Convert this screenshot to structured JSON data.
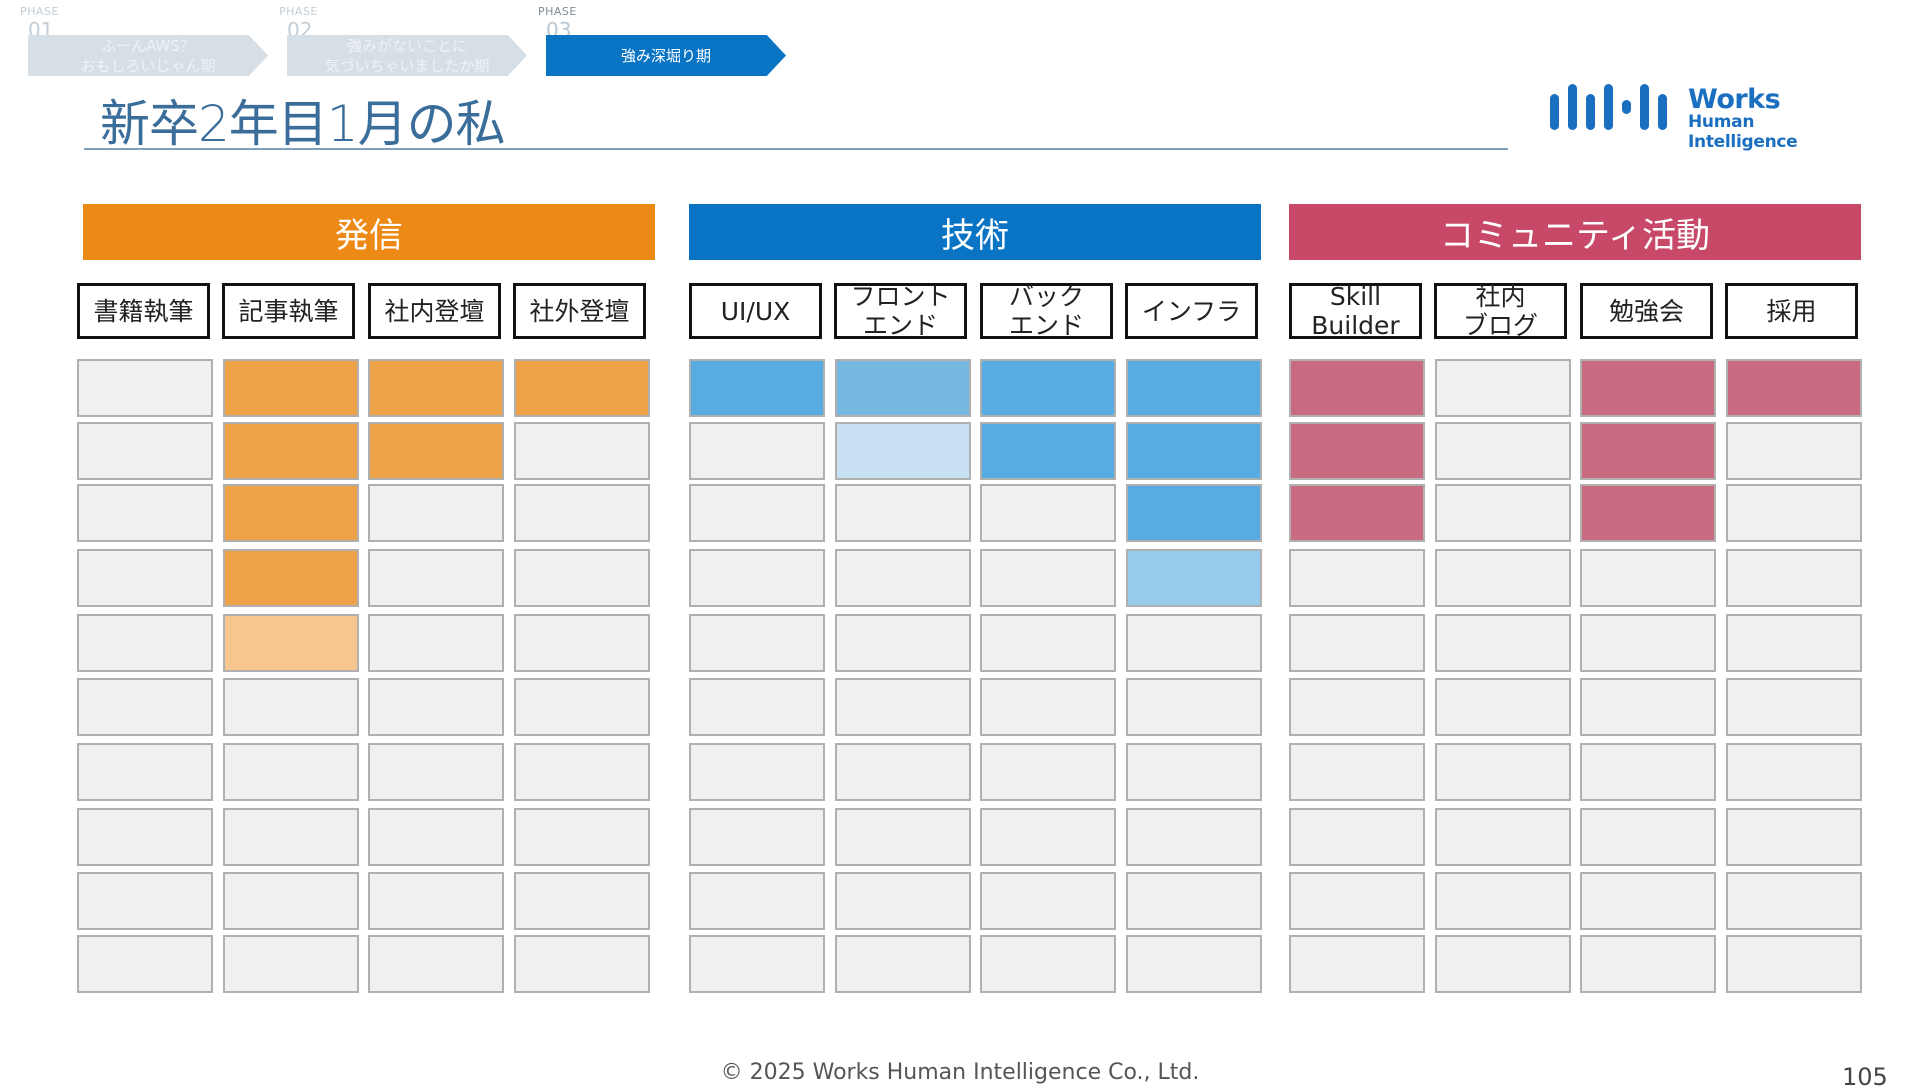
{
  "phases": [
    {
      "tag": "PHASE",
      "num": "01",
      "label": "ふーんAWS？\nおもしろいじゃん期",
      "state": "inactive"
    },
    {
      "tag": "PHASE",
      "num": "02",
      "label": "強みがないことに\n気づいちゃいましたか期",
      "state": "inactive"
    },
    {
      "tag": "PHASE",
      "num": "03",
      "label": "強み深堀り期",
      "state": "active"
    }
  ],
  "title": "新卒2年目1月の私",
  "logo": {
    "word": "Works",
    "sub": "Human Intelligence",
    "color": "#1a6fc0"
  },
  "categories": [
    {
      "label": "発信",
      "color": "#ed8a15",
      "columns": [
        {
          "label": "書籍執筆",
          "filled": 0,
          "fill_color": "#eea248",
          "partial": 0
        },
        {
          "label": "記事執筆",
          "filled": 4,
          "fill_color": "#eea248",
          "partial": 1,
          "partial_color": "#f7c690"
        },
        {
          "label": "社内登壇",
          "filled": 2,
          "fill_color": "#eea248",
          "partial": 0
        },
        {
          "label": "社外登壇",
          "filled": 1,
          "fill_color": "#eea248",
          "partial": 0
        }
      ]
    },
    {
      "label": "技術",
      "color": "#0a74c4",
      "columns": [
        {
          "label": "UI/UX",
          "filled": 1,
          "fill_color": "#57ace1",
          "partial": 0
        },
        {
          "label": "フロント\nエンド",
          "filled": 1,
          "fill_color": "#75b8e2",
          "partial": 1,
          "partial_color": "#c8e2f4"
        },
        {
          "label": "バック\nエンド",
          "filled": 2,
          "fill_color": "#57ace1",
          "partial": 0
        },
        {
          "label": "インフラ",
          "filled": 3,
          "fill_color": "#57ace1",
          "partial": 1,
          "partial_color": "#97cbeb"
        }
      ]
    },
    {
      "label": "コミュニティ活動",
      "color": "#c74867",
      "columns": [
        {
          "label": "Skill\nBuilder",
          "filled": 3,
          "fill_color": "#c86b81",
          "partial": 0
        },
        {
          "label": "社内\nブログ",
          "filled": 0,
          "fill_color": "#c86b81",
          "partial": 0
        },
        {
          "label": "勉強会",
          "filled": 3,
          "fill_color": "#c86b81",
          "partial": 0
        },
        {
          "label": "採用",
          "filled": 1,
          "fill_color": "#c86b81",
          "partial": 0
        }
      ]
    }
  ],
  "rows": 10,
  "footer": "© 2025 Works Human Intelligence Co., Ltd.",
  "page_number": "105"
}
